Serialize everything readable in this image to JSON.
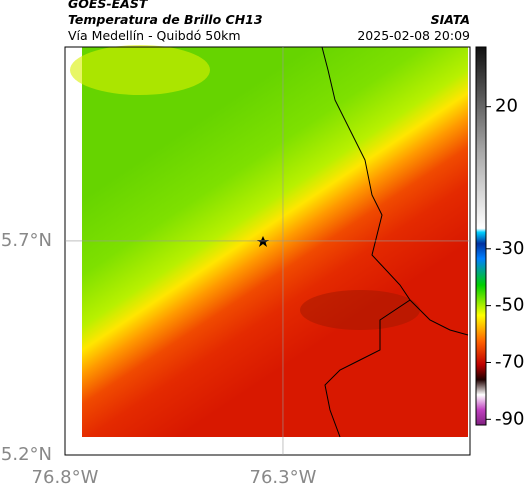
{
  "header": {
    "title": "GOES-EAST",
    "subtitle": "Temperatura de Brillo CH13",
    "region": "Vía Medellín - Quibdó 50km",
    "source": "SIATA",
    "datetime": "2025-02-08 20:09"
  },
  "map": {
    "xlim": [
      -76.8,
      -75.871
    ],
    "ylim": [
      5.2,
      6.153
    ],
    "xticks": [
      {
        "value": -76.8,
        "label": "76.8°W"
      },
      {
        "value": -76.3,
        "label": "76.3°W"
      }
    ],
    "yticks": [
      {
        "value": 5.7,
        "label": "5.7°N"
      },
      {
        "value": 5.2,
        "label": "5.2°N"
      }
    ]
  },
  "colorbar": {
    "clim": [
      -92,
      41
    ],
    "ticks": [
      20,
      -30,
      -50,
      -70,
      -90
    ]
  }
}
